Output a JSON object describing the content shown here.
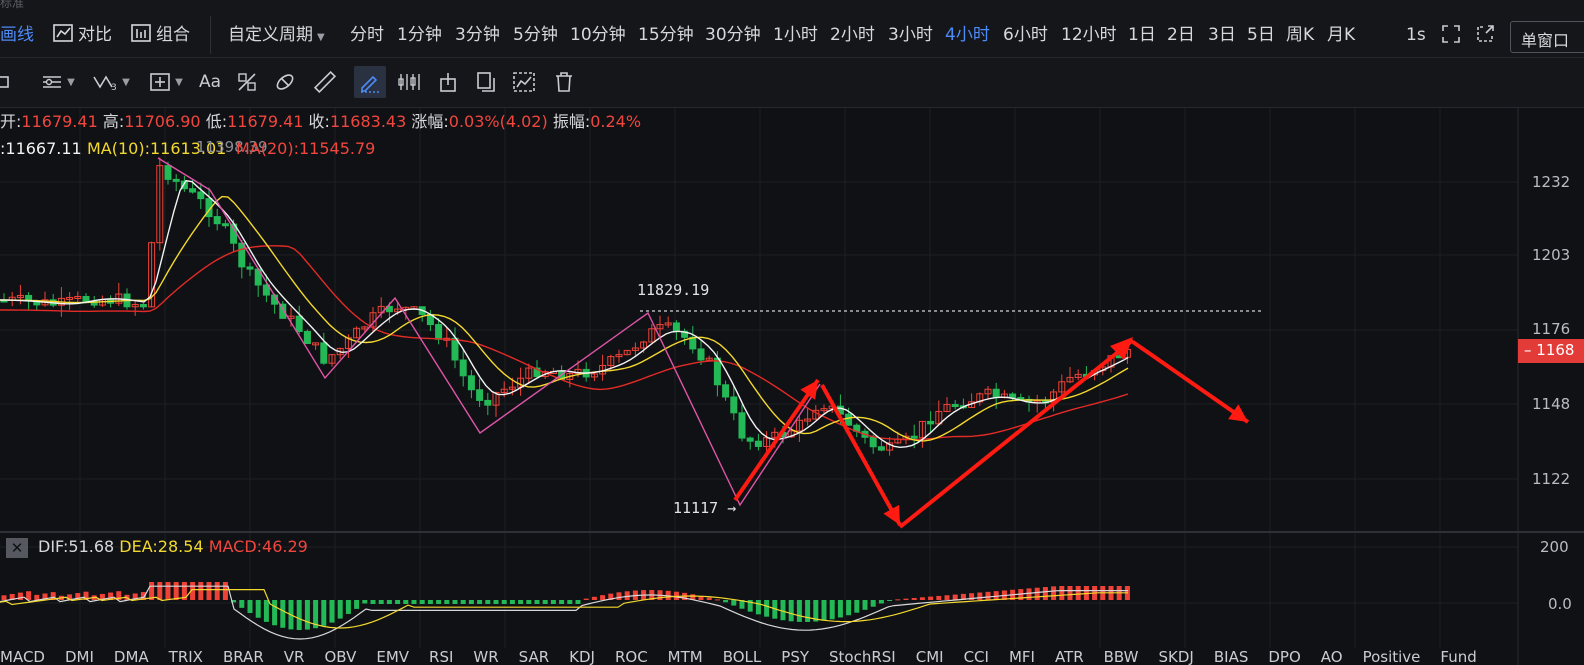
{
  "top_strip_text": "标准",
  "period_bar": {
    "draw_tab": "画线",
    "compare": "对比",
    "combine": "组合",
    "custom_period": "自定义周期",
    "periods": [
      "分时",
      "1分钟",
      "3分钟",
      "5分钟",
      "10分钟",
      "15分钟",
      "30分钟",
      "1小时",
      "2小时",
      "3小时",
      "4小时",
      "6小时",
      "12小时",
      "1日",
      "2日",
      "3日",
      "5日",
      "周K",
      "月K"
    ],
    "active_period": "4小时",
    "refresh": "1s",
    "single_window": "单窗口"
  },
  "toolbar": {
    "text_tool": "Aa",
    "tools": [
      "cursor-tool",
      "lines-tool",
      "wave-tool",
      "add-tool",
      "text-tool",
      "measure-tool",
      "magnet-tool",
      "ruler-tool",
      "pen-tool",
      "pattern-tool",
      "anchor-tool",
      "copy-tool",
      "settings-tool",
      "trash-tool"
    ]
  },
  "ohlc": {
    "open_label": "开:",
    "open": "11679.41",
    "high_label": "高:",
    "high": "11706.90",
    "low_label": "低:",
    "low": "11679.41",
    "close_label": "收:",
    "close": "11683.43",
    "change_label": "涨幅:",
    "change": "0.03%(4.02)",
    "amp_label": "振幅:",
    "amp": "0.24%"
  },
  "ma": {
    "ma5": ":11667.11",
    "ma10": "MA(10):11613.01",
    "ma20": "MA(20):11545.79",
    "overlap": "11398.39"
  },
  "annotations": {
    "high": "11829.19",
    "low": "11117"
  },
  "price_axis": [
    "1232",
    "1203",
    "1176",
    "1148",
    "1122"
  ],
  "last_price": "1168",
  "macd": {
    "dif": "DIF:51.68",
    "dea": "DEA:28.54",
    "macd": "MACD:46.29",
    "axis": [
      "200",
      "0.0"
    ]
  },
  "bottom_tabs": [
    "MACD",
    "DMI",
    "DMA",
    "TRIX",
    "BRAR",
    "VR",
    "OBV",
    "EMV",
    "RSI",
    "WR",
    "SAR",
    "KDJ",
    "ROC",
    "MTM",
    "BOLL",
    "PSY",
    "StochRSI",
    "CMI",
    "CCI",
    "MFI",
    "ATR",
    "BBW",
    "SKDJ",
    "BIAS",
    "DPO",
    "AO",
    "Positive",
    "Fund"
  ],
  "colors": {
    "up": "#ef4237",
    "down": "#23b957",
    "ma5": "#f2f2f2",
    "ma10": "#f3d82e",
    "ma20": "#e22b26",
    "accent": "#4d8bf8",
    "pattern": "#e055a8",
    "arrow": "#ff1a12"
  }
}
